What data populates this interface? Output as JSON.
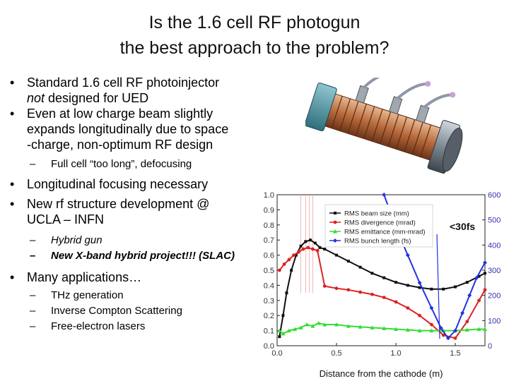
{
  "slide": {
    "title_line1": "Is the 1.6 cell RF photogun",
    "title_line2": "the best approach to the problem?"
  },
  "bullets": {
    "b1": {
      "text_a": "Standard 1.6 cell RF photoinjector",
      "text_b_italic": "not",
      "text_c": " designed for UED"
    },
    "b2": {
      "line1": "Even at low charge beam  slightly",
      "line2": "expands longitudinally due to space",
      "line3": "-charge, non-optimum RF design"
    },
    "b2_sub1": "Full cell “too long”, defocusing",
    "b3": "Longitudinal focusing necessary",
    "b4": {
      "line1": "New rf structure development @",
      "line2": "UCLA – INFN"
    },
    "b4_sub1": "Hybrid gun",
    "b4_sub2": "New X-band hybrid project!!! (SLAC)",
    "b5": "Many applications…",
    "b5_sub1": "THz generation",
    "b5_sub2": "Inverse Compton Scattering",
    "b5_sub3": "Free-electron lasers"
  },
  "chart_data": {
    "type": "scatter",
    "xlabel": "Distance from the cathode (m)",
    "xlim": [
      0,
      1.75
    ],
    "ylim": [
      0,
      1.0
    ],
    "y2lim": [
      0,
      600
    ],
    "x_ticks": [
      0.0,
      0.5,
      1.0,
      1.5
    ],
    "x_tick_labels": [
      "0.0",
      "0.5",
      "1.0",
      "1.5"
    ],
    "y_ticks": [
      0,
      0.1,
      0.2,
      0.3,
      0.4,
      0.5,
      0.6,
      0.7,
      0.8,
      0.9,
      1.0
    ],
    "y_tick_labels": [
      "0.0",
      "0.1",
      "0.2",
      "0.3",
      "0.4",
      "0.5",
      "0.6",
      "0.7",
      "0.8",
      "0.9",
      "1.0"
    ],
    "y2_ticks": [
      0,
      100,
      200,
      300,
      400,
      500,
      600
    ],
    "y2_tick_labels": [
      "0",
      "100",
      "200",
      "300",
      "400",
      "500",
      "600"
    ],
    "annotation": "<30fs",
    "legend_position": "top-center",
    "series": [
      {
        "name": "RMS beam size (mm)",
        "color": "#111111",
        "marker": "square",
        "axis": "left",
        "x": [
          0.02,
          0.05,
          0.08,
          0.12,
          0.16,
          0.2,
          0.24,
          0.28,
          0.32,
          0.36,
          0.4,
          0.5,
          0.6,
          0.7,
          0.8,
          0.9,
          1.0,
          1.1,
          1.2,
          1.3,
          1.4,
          1.5,
          1.6,
          1.7,
          1.75
        ],
        "y": [
          0.06,
          0.2,
          0.35,
          0.5,
          0.6,
          0.66,
          0.69,
          0.7,
          0.68,
          0.65,
          0.64,
          0.6,
          0.56,
          0.52,
          0.48,
          0.45,
          0.42,
          0.4,
          0.385,
          0.375,
          0.375,
          0.39,
          0.42,
          0.46,
          0.48
        ]
      },
      {
        "name": "RMS divergence (mrad)",
        "color": "#dd2222",
        "marker": "circle",
        "axis": "left",
        "x": [
          0.02,
          0.06,
          0.1,
          0.14,
          0.18,
          0.22,
          0.26,
          0.3,
          0.34,
          0.4,
          0.5,
          0.6,
          0.7,
          0.8,
          0.9,
          1.0,
          1.1,
          1.2,
          1.3,
          1.4,
          1.5,
          1.6,
          1.7,
          1.75
        ],
        "y": [
          0.5,
          0.54,
          0.57,
          0.6,
          0.62,
          0.64,
          0.65,
          0.64,
          0.63,
          0.395,
          0.38,
          0.37,
          0.355,
          0.34,
          0.32,
          0.29,
          0.25,
          0.2,
          0.14,
          0.07,
          0.05,
          0.16,
          0.3,
          0.37
        ]
      },
      {
        "name": "RMS emittance (mm-mrad)",
        "color": "#33dd33",
        "marker": "triangle",
        "axis": "left",
        "x": [
          0.02,
          0.05,
          0.1,
          0.15,
          0.2,
          0.25,
          0.3,
          0.35,
          0.4,
          0.5,
          0.6,
          0.7,
          0.8,
          0.9,
          1.0,
          1.1,
          1.2,
          1.3,
          1.4,
          1.5,
          1.6,
          1.7,
          1.75
        ],
        "y": [
          0.1,
          0.08,
          0.1,
          0.11,
          0.12,
          0.14,
          0.13,
          0.15,
          0.14,
          0.14,
          0.13,
          0.125,
          0.12,
          0.115,
          0.11,
          0.105,
          0.1,
          0.1,
          0.1,
          0.1,
          0.105,
          0.11,
          0.11
        ]
      },
      {
        "name": "RMS bunch length (fs)",
        "color": "#2233dd",
        "marker": "diamond",
        "axis": "right",
        "x": [
          0.9,
          1.0,
          1.1,
          1.2,
          1.3,
          1.38,
          1.44,
          1.5,
          1.56,
          1.62,
          1.68,
          1.75
        ],
        "y": [
          600,
          470,
          360,
          250,
          150,
          70,
          30,
          60,
          130,
          200,
          270,
          330
        ]
      }
    ]
  }
}
